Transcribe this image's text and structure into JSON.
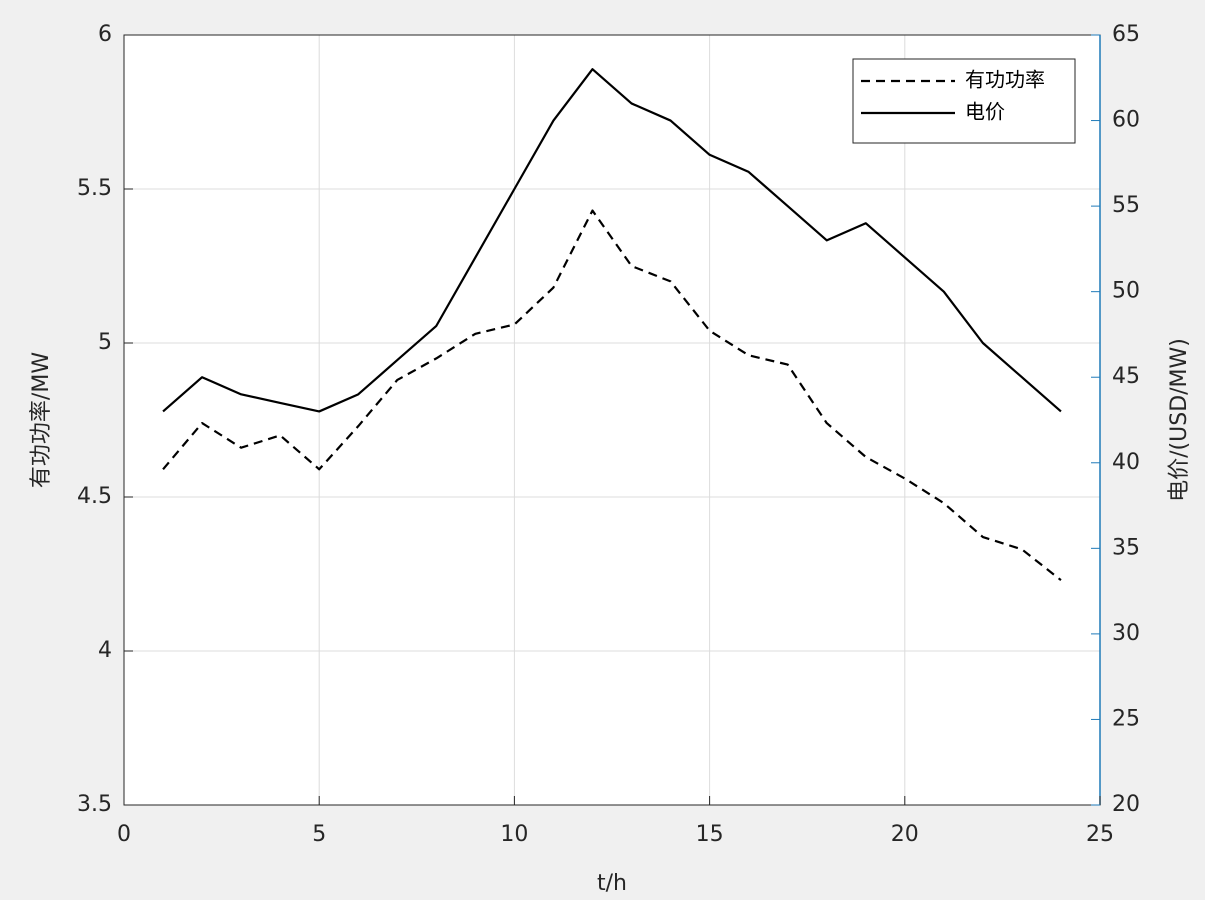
{
  "chart_data": {
    "type": "line",
    "x_label": "t/h",
    "y_label": "有功功率/MW",
    "y2_label": "电价/(USD/MW)",
    "x": [
      1,
      2,
      3,
      4,
      5,
      6,
      7,
      8,
      9,
      10,
      11,
      12,
      13,
      14,
      15,
      16,
      17,
      18,
      19,
      20,
      21,
      22,
      23,
      24
    ],
    "series": [
      {
        "name": "有功功率",
        "color": "#000000",
        "style": "dashed",
        "values": [
          4.59,
          4.74,
          4.66,
          4.7,
          4.59,
          4.73,
          4.88,
          4.95,
          5.03,
          5.06,
          5.18,
          5.43,
          5.25,
          5.2,
          5.04,
          4.96,
          4.93,
          4.74,
          4.63,
          4.56,
          4.48,
          4.37,
          4.33,
          4.23
        ]
      },
      {
        "name": "电价",
        "color": "#000000",
        "style": "solid",
        "axis": "y2",
        "values": [
          43,
          45,
          44,
          43.5,
          43,
          44,
          46,
          48,
          52,
          56,
          60,
          63,
          61,
          60,
          58,
          57,
          55,
          53,
          54,
          52,
          50,
          47,
          45,
          43
        ]
      }
    ],
    "xlim": [
      0,
      25
    ],
    "xticks": [
      0,
      5,
      10,
      15,
      20,
      25
    ],
    "ylim": [
      3.5,
      6
    ],
    "yticks": [
      3.5,
      4,
      4.5,
      5,
      5.5,
      6
    ],
    "y2lim": [
      20,
      65
    ],
    "y2ticks": [
      20,
      25,
      30,
      35,
      40,
      45,
      50,
      55,
      60,
      65
    ],
    "y2_color": "#1f7ab8",
    "grid": true,
    "legend": "upper right"
  }
}
